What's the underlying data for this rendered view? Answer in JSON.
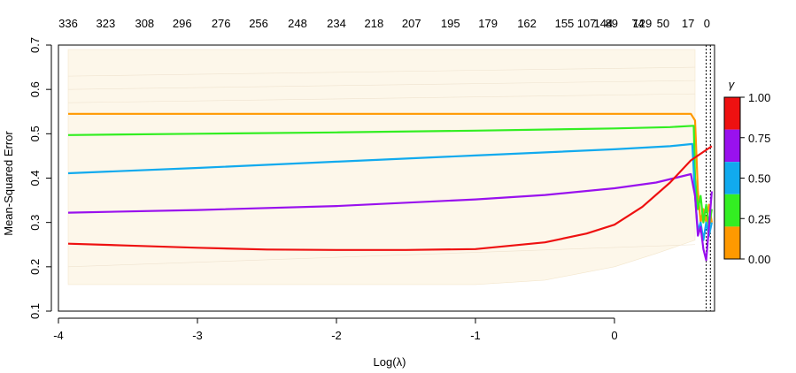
{
  "chart_data": {
    "type": "line",
    "title": "",
    "xlabel": "Log(λ)",
    "ylabel": "Mean-Squared Error",
    "xlim": [
      -4.0,
      0.72
    ],
    "ylim": [
      0.1,
      0.7
    ],
    "x_ticks": [
      "-4",
      "-3",
      "-2",
      "-1",
      "0"
    ],
    "x_tick_values": [
      -4,
      -3,
      -2,
      -1,
      0
    ],
    "y_ticks": [
      "0.1",
      "0.2",
      "0.3",
      "0.4",
      "0.5",
      "0.6",
      "0.7"
    ],
    "y_tick_values": [
      0.1,
      0.2,
      0.3,
      0.4,
      0.5,
      0.6,
      0.7
    ],
    "top_axis": {
      "labels": [
        "336",
        "323",
        "308",
        "296",
        "276",
        "256",
        "248",
        "234",
        "218",
        "207",
        "195",
        "179",
        "162",
        "155",
        "144",
        "129",
        "107",
        "89",
        "74",
        "50",
        "17",
        "0"
      ],
      "x_values": [
        -3.93,
        -3.66,
        -3.38,
        -3.11,
        -2.83,
        -2.56,
        -2.28,
        -2.0,
        -1.73,
        -1.46,
        -1.18,
        -0.91,
        -0.63,
        -0.36,
        -0.08,
        0.2,
        0.47,
        0.75,
        1.02,
        1.3,
        1.58,
        1.7
      ]
    },
    "vlines": [
      0.66,
      0.69
    ],
    "band": {
      "x": [
        -3.93,
        -3.5,
        -3.0,
        -2.5,
        -2.0,
        -1.5,
        -1.0,
        -0.5,
        0.0,
        0.3,
        0.58
      ],
      "upper": [
        0.69,
        0.69,
        0.69,
        0.69,
        0.69,
        0.69,
        0.69,
        0.69,
        0.69,
        0.69,
        0.69
      ],
      "lower": [
        0.16,
        0.16,
        0.16,
        0.16,
        0.16,
        0.16,
        0.16,
        0.17,
        0.2,
        0.23,
        0.26
      ]
    },
    "series": [
      {
        "color": "#ff9900",
        "x": [
          -3.93,
          -3.0,
          -2.0,
          -1.0,
          0.0,
          0.55,
          0.58,
          0.6,
          0.62,
          0.64,
          0.66,
          0.68,
          0.7
        ],
        "y": [
          0.545,
          0.545,
          0.545,
          0.545,
          0.545,
          0.545,
          0.53,
          0.37,
          0.3,
          0.33,
          0.3,
          0.34,
          0.3
        ]
      },
      {
        "color": "#33ee22",
        "x": [
          -3.93,
          -3.0,
          -2.0,
          -1.0,
          0.0,
          0.4,
          0.57,
          0.58,
          0.6,
          0.62,
          0.64,
          0.66,
          0.68,
          0.7
        ],
        "y": [
          0.497,
          0.5,
          0.503,
          0.507,
          0.512,
          0.515,
          0.518,
          0.4,
          0.33,
          0.36,
          0.3,
          0.34,
          0.29,
          0.33
        ]
      },
      {
        "color": "#11aaee",
        "x": [
          -3.93,
          -3.0,
          -2.0,
          -1.0,
          0.0,
          0.4,
          0.56,
          0.58,
          0.6,
          0.62,
          0.64,
          0.66,
          0.68,
          0.7
        ],
        "y": [
          0.411,
          0.423,
          0.437,
          0.451,
          0.465,
          0.472,
          0.477,
          0.36,
          0.28,
          0.3,
          0.26,
          0.3,
          0.27,
          0.3
        ]
      },
      {
        "color": "#9911ee",
        "x": [
          -3.93,
          -3.0,
          -2.0,
          -1.0,
          -0.5,
          0.0,
          0.3,
          0.55,
          0.58,
          0.6,
          0.62,
          0.64,
          0.66,
          0.68,
          0.7
        ],
        "y": [
          0.322,
          0.328,
          0.337,
          0.352,
          0.362,
          0.377,
          0.39,
          0.409,
          0.36,
          0.27,
          0.29,
          0.24,
          0.215,
          0.29,
          0.37
        ]
      },
      {
        "color": "#ee1111",
        "x": [
          -3.93,
          -3.5,
          -3.0,
          -2.5,
          -2.0,
          -1.5,
          -1.0,
          -0.5,
          -0.2,
          0.0,
          0.2,
          0.4,
          0.55,
          0.7
        ],
        "y": [
          0.252,
          0.248,
          0.243,
          0.239,
          0.238,
          0.238,
          0.24,
          0.255,
          0.275,
          0.295,
          0.335,
          0.39,
          0.44,
          0.472
        ]
      }
    ],
    "colorbar": {
      "title": "γ",
      "labels": [
        "1.00",
        "0.75",
        "0.50",
        "0.25",
        "0.00"
      ],
      "values": [
        1.0,
        0.75,
        0.5,
        0.25,
        0.0
      ],
      "colors": [
        "#ee1111",
        "#9911ee",
        "#11aaee",
        "#33ee22",
        "#ff9900"
      ]
    }
  }
}
